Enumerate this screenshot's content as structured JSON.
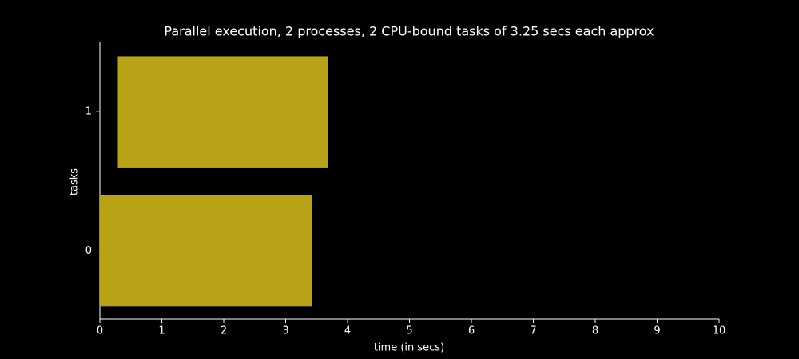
{
  "chart_data": {
    "type": "barh-span",
    "title": "Parallel execution, 2 processes, 2 CPU-bound tasks of 3.25 secs each approx",
    "xlabel": "time (in secs)",
    "ylabel": "tasks",
    "y": [
      0,
      1
    ],
    "starts": [
      0,
      0.29
    ],
    "ends": [
      3.42,
      3.69
    ],
    "bar_height": 0.8,
    "color": "#b8a215",
    "xlim": [
      0,
      10
    ],
    "xticks": [
      0,
      1,
      2,
      3,
      4,
      5,
      6,
      7,
      8,
      9,
      10
    ],
    "ylim": [
      -0.49,
      1.5
    ],
    "yticks": [
      0,
      1
    ],
    "grid": false
  }
}
